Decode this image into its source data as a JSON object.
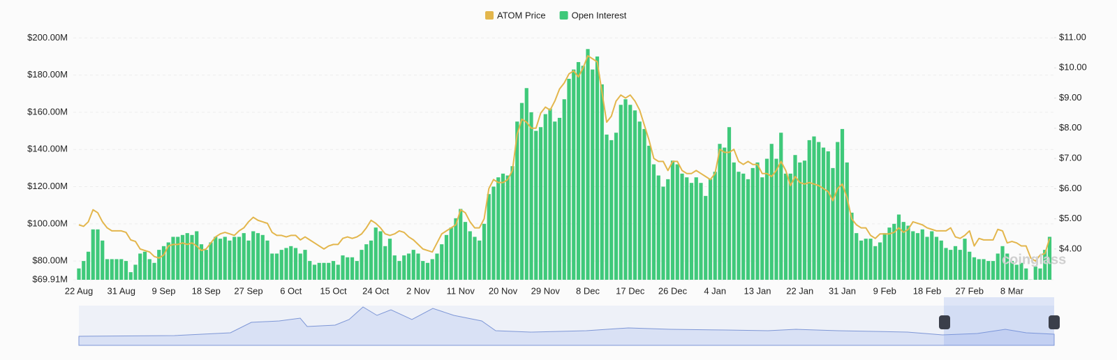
{
  "chart_data": {
    "type": "bar-line",
    "watermark": "coinglass",
    "categories": [
      "22 Aug",
      null,
      null,
      null,
      null,
      null,
      null,
      null,
      null,
      "31 Aug",
      null,
      null,
      null,
      null,
      null,
      null,
      null,
      null,
      "9 Sep",
      null,
      null,
      null,
      null,
      null,
      null,
      null,
      null,
      "18 Sep",
      null,
      null,
      null,
      null,
      null,
      null,
      null,
      null,
      "27 Sep",
      null,
      null,
      null,
      null,
      null,
      null,
      null,
      null,
      "6 Oct",
      null,
      null,
      null,
      null,
      null,
      null,
      null,
      null,
      "15 Oct",
      null,
      null,
      null,
      null,
      null,
      null,
      null,
      null,
      "24 Oct",
      null,
      null,
      null,
      null,
      null,
      null,
      null,
      null,
      "2 Nov",
      null,
      null,
      null,
      null,
      null,
      null,
      null,
      null,
      "11 Nov",
      null,
      null,
      null,
      null,
      null,
      null,
      null,
      null,
      "20 Nov",
      null,
      null,
      null,
      null,
      null,
      null,
      null,
      null,
      "29 Nov",
      null,
      null,
      null,
      null,
      null,
      null,
      null,
      null,
      "8 Dec",
      null,
      null,
      null,
      null,
      null,
      null,
      null,
      null,
      "17 Dec",
      null,
      null,
      null,
      null,
      null,
      null,
      null,
      null,
      "26 Dec",
      null,
      null,
      null,
      null,
      null,
      null,
      null,
      null,
      "4 Jan",
      null,
      null,
      null,
      null,
      null,
      null,
      null,
      null,
      "13 Jan",
      null,
      null,
      null,
      null,
      null,
      null,
      null,
      null,
      "22 Jan",
      null,
      null,
      null,
      null,
      null,
      null,
      null,
      null,
      "31 Jan",
      null,
      null,
      null,
      null,
      null,
      null,
      null,
      null,
      "9 Feb",
      null,
      null,
      null,
      null,
      null,
      null,
      null,
      null,
      "18 Feb",
      null,
      null,
      null,
      null,
      null,
      null,
      null,
      null,
      "27 Feb",
      null,
      null,
      null,
      null,
      null,
      null,
      null,
      null,
      "8 Mar",
      null,
      null,
      null,
      null,
      null,
      null,
      null,
      null
    ],
    "series": [
      {
        "name": "ATOM Price",
        "type": "line",
        "axis": "y2",
        "color": "#e3b64c",
        "values": [
          4.8,
          4.75,
          4.9,
          5.3,
          5.2,
          4.9,
          4.7,
          4.6,
          4.6,
          4.6,
          4.55,
          4.3,
          4.25,
          4.0,
          3.95,
          3.9,
          3.75,
          3.7,
          3.8,
          4.1,
          4.15,
          4.15,
          4.2,
          4.15,
          4.2,
          4.1,
          3.95,
          4.0,
          4.2,
          4.4,
          4.5,
          4.55,
          4.5,
          4.45,
          4.6,
          4.7,
          4.9,
          5.05,
          4.95,
          4.9,
          4.85,
          4.55,
          4.45,
          4.45,
          4.4,
          4.45,
          4.45,
          4.3,
          4.4,
          4.3,
          4.2,
          4.1,
          4.0,
          4.1,
          4.15,
          4.15,
          4.35,
          4.4,
          4.35,
          4.4,
          4.5,
          4.7,
          4.95,
          4.85,
          4.7,
          4.5,
          4.45,
          4.5,
          4.6,
          4.55,
          4.4,
          4.3,
          4.15,
          4.0,
          3.95,
          3.9,
          4.2,
          4.5,
          4.6,
          4.7,
          4.8,
          5.3,
          5.2,
          4.9,
          4.7,
          4.7,
          5.0,
          6.0,
          6.3,
          6.2,
          6.2,
          6.3,
          6.6,
          7.8,
          8.3,
          8.2,
          8.0,
          8.0,
          8.5,
          8.7,
          8.6,
          8.9,
          9.3,
          9.5,
          9.8,
          9.9,
          9.7,
          10.0,
          10.4,
          10.3,
          10.2,
          9.2,
          8.2,
          8.4,
          8.9,
          9.1,
          9.0,
          9.1,
          8.9,
          8.6,
          8.1,
          7.6,
          7.0,
          6.9,
          6.9,
          6.6,
          6.9,
          6.9,
          6.6,
          6.5,
          6.5,
          6.6,
          6.5,
          6.4,
          6.3,
          6.5,
          7.3,
          7.2,
          7.2,
          7.3,
          6.9,
          6.8,
          6.9,
          6.8,
          6.8,
          6.5,
          6.5,
          6.4,
          6.6,
          6.9,
          6.6,
          6.1,
          6.4,
          6.2,
          6.15,
          6.2,
          6.15,
          6.1,
          6.0,
          5.9,
          5.6,
          6.0,
          6.15,
          5.7,
          5.0,
          4.8,
          4.7,
          4.7,
          4.45,
          4.35,
          4.5,
          4.5,
          4.5,
          4.55,
          4.7,
          4.55,
          4.65,
          4.9,
          4.85,
          4.8,
          4.7,
          4.65,
          4.6,
          4.6,
          4.6,
          4.7,
          4.4,
          4.35,
          4.45,
          4.6,
          4.1,
          4.35,
          4.3,
          4.3,
          4.3,
          4.65,
          4.6,
          4.2,
          4.25,
          4.2,
          4.1,
          4.1,
          3.7,
          3.6,
          3.8,
          3.85,
          4.35
        ]
      },
      {
        "name": "Open Interest",
        "type": "bar",
        "axis": "y",
        "color": "#3fc97a",
        "values": [
          76,
          80,
          85,
          97,
          97,
          91,
          81,
          81,
          81,
          81,
          80,
          74,
          78,
          84,
          85,
          81,
          79,
          86,
          88,
          90,
          93,
          93,
          94,
          95,
          94,
          96,
          89,
          86,
          90,
          93,
          92,
          93,
          91,
          93,
          93,
          95,
          91,
          96,
          95,
          94,
          91,
          84,
          84,
          86,
          87,
          88,
          87,
          84,
          86,
          80,
          78,
          79,
          79,
          79,
          80,
          78,
          83,
          82,
          82,
          80,
          86,
          89,
          91,
          98,
          96,
          88,
          92,
          83,
          80,
          83,
          84,
          86,
          84,
          80,
          79,
          81,
          84,
          89,
          94,
          98,
          103,
          108,
          101,
          96,
          93,
          91,
          100,
          116,
          120,
          125,
          127,
          126,
          131,
          155,
          165,
          173,
          160,
          150,
          152,
          159,
          162,
          155,
          157,
          167,
          178,
          183,
          187,
          185,
          194,
          183,
          190,
          175,
          148,
          145,
          149,
          164,
          167,
          164,
          161,
          155,
          151,
          142,
          132,
          126,
          120,
          124,
          134,
          132,
          127,
          125,
          122,
          125,
          122,
          115,
          124,
          128,
          143,
          141,
          152,
          133,
          128,
          127,
          124,
          130,
          133,
          125,
          135,
          143,
          135,
          149,
          127,
          127,
          137,
          133,
          134,
          145,
          147,
          144,
          141,
          139,
          130,
          144,
          151,
          133,
          106,
          95,
          91,
          92,
          92,
          88,
          90,
          95,
          98,
          100,
          105,
          101,
          99,
          96,
          95,
          97,
          93,
          96,
          93,
          91,
          87,
          86,
          88,
          86,
          92,
          85,
          82,
          81,
          81,
          80,
          80,
          84,
          88,
          84,
          80,
          78,
          79,
          76,
          70,
          77,
          76,
          86,
          93
        ]
      }
    ],
    "ylim": [
      69.91,
      205
    ],
    "yticks": [
      {
        "value": 69.91,
        "label": "$69.91M"
      },
      {
        "value": 80,
        "label": "$80.00M"
      },
      {
        "value": 100,
        "label": "$100.00M"
      },
      {
        "value": 120,
        "label": "$120.00M"
      },
      {
        "value": 140,
        "label": "$140.00M"
      },
      {
        "value": 160,
        "label": "$160.00M"
      },
      {
        "value": 180,
        "label": "$180.00M"
      },
      {
        "value": 200,
        "label": "$200.00M"
      }
    ],
    "y2lim": [
      2.98,
      11.3
    ],
    "y2ticks": [
      {
        "value": 4,
        "label": "$4.00"
      },
      {
        "value": 5,
        "label": "$5.00"
      },
      {
        "value": 6,
        "label": "$6.00"
      },
      {
        "value": 7,
        "label": "$7.00"
      },
      {
        "value": 8,
        "label": "$8.00"
      },
      {
        "value": 9,
        "label": "$9.00"
      },
      {
        "value": 10,
        "label": "$10.00"
      },
      {
        "value": 11,
        "label": "$11.00"
      }
    ],
    "grid": true,
    "legend": "top"
  }
}
